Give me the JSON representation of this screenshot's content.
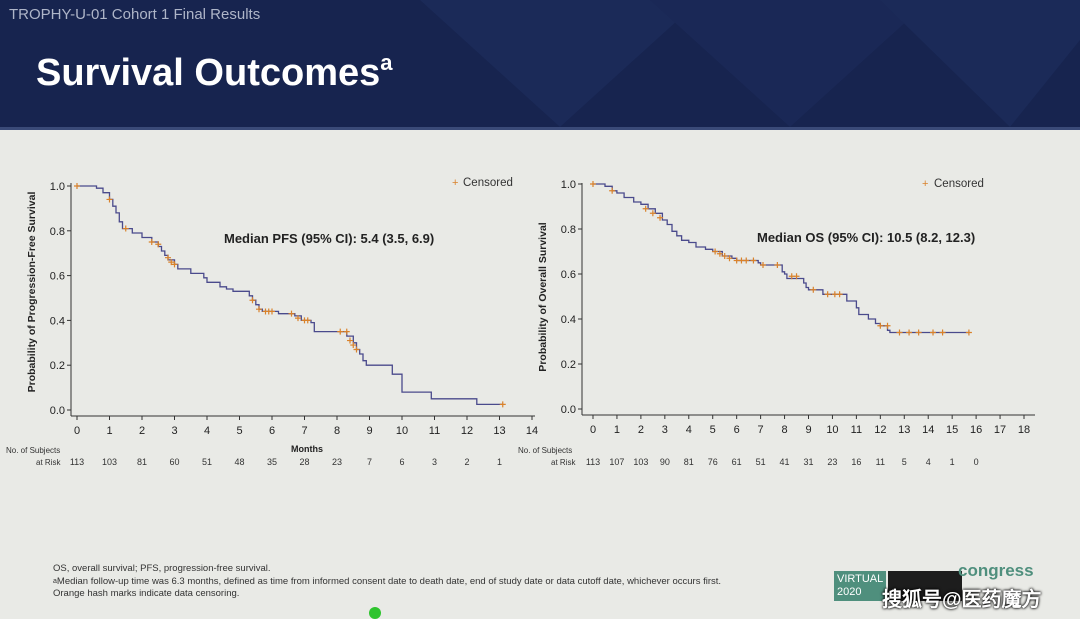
{
  "header": {
    "subtitle": "TROPHY-U-01 Cohort 1 Final Results",
    "title": "Survival Outcomes",
    "title_superscript": "a"
  },
  "chart_data": [
    {
      "type": "line",
      "title": "",
      "xlabel": "Months",
      "ylabel": "Probability of Progression-Free Survival",
      "xlim": [
        0,
        14
      ],
      "ylim": [
        0,
        1
      ],
      "x_ticks": [
        0,
        1,
        2,
        3,
        4,
        5,
        6,
        7,
        8,
        9,
        10,
        11,
        12,
        13,
        14
      ],
      "y_ticks": [
        0.0,
        0.2,
        0.4,
        0.6,
        0.8,
        1.0
      ],
      "y_tick_labels": [
        "0.0",
        "0.2",
        "0.4",
        "0.6",
        "0.8",
        "1.0"
      ],
      "annotation": "Median PFS (95% CI): 5.4 (3.5, 6.9)",
      "legend": {
        "label": "Censored",
        "position": "top-right"
      },
      "line_color": "#4a4a8c",
      "censor_color": "#d9822b",
      "series": [
        {
          "step": [
            [
              0,
              1.0
            ],
            [
              0.4,
              1.0
            ],
            [
              0.6,
              0.99
            ],
            [
              0.8,
              0.97
            ],
            [
              1.0,
              0.94
            ],
            [
              1.1,
              0.91
            ],
            [
              1.2,
              0.88
            ],
            [
              1.3,
              0.84
            ],
            [
              1.4,
              0.81
            ],
            [
              1.7,
              0.79
            ],
            [
              2.0,
              0.77
            ],
            [
              2.3,
              0.75
            ],
            [
              2.5,
              0.73
            ],
            [
              2.6,
              0.71
            ],
            [
              2.7,
              0.69
            ],
            [
              2.8,
              0.67
            ],
            [
              3.0,
              0.65
            ],
            [
              3.1,
              0.63
            ],
            [
              3.5,
              0.61
            ],
            [
              3.9,
              0.59
            ],
            [
              4.0,
              0.57
            ],
            [
              4.4,
              0.55
            ],
            [
              4.5,
              0.55
            ],
            [
              4.6,
              0.54
            ],
            [
              4.8,
              0.53
            ],
            [
              5.0,
              0.53
            ],
            [
              5.3,
              0.51
            ],
            [
              5.4,
              0.49
            ],
            [
              5.5,
              0.47
            ],
            [
              5.6,
              0.45
            ],
            [
              5.7,
              0.44
            ],
            [
              6.2,
              0.43
            ],
            [
              6.7,
              0.42
            ],
            [
              6.9,
              0.4
            ],
            [
              7.2,
              0.39
            ],
            [
              7.3,
              0.35
            ],
            [
              8.2,
              0.35
            ],
            [
              8.3,
              0.33
            ],
            [
              8.5,
              0.3
            ],
            [
              8.6,
              0.27
            ],
            [
              8.7,
              0.25
            ],
            [
              8.8,
              0.22
            ],
            [
              8.9,
              0.2
            ],
            [
              9.7,
              0.16
            ],
            [
              10.0,
              0.08
            ],
            [
              10.9,
              0.05
            ],
            [
              12.3,
              0.025
            ],
            [
              13.1,
              0.025
            ]
          ],
          "censored": [
            [
              0,
              1.0
            ],
            [
              1.0,
              0.94
            ],
            [
              1.5,
              0.81
            ],
            [
              2.3,
              0.75
            ],
            [
              2.5,
              0.74
            ],
            [
              2.8,
              0.68
            ],
            [
              2.9,
              0.66
            ],
            [
              3.0,
              0.65
            ],
            [
              5.4,
              0.49
            ],
            [
              5.6,
              0.45
            ],
            [
              5.8,
              0.44
            ],
            [
              5.9,
              0.44
            ],
            [
              6.0,
              0.44
            ],
            [
              6.6,
              0.43
            ],
            [
              6.8,
              0.41
            ],
            [
              7.0,
              0.4
            ],
            [
              7.1,
              0.4
            ],
            [
              8.1,
              0.35
            ],
            [
              8.3,
              0.35
            ],
            [
              8.4,
              0.31
            ],
            [
              8.5,
              0.29
            ],
            [
              8.6,
              0.27
            ],
            [
              13.1,
              0.025
            ]
          ]
        }
      ],
      "at_risk": {
        "label_line1": "No. of Subjects",
        "label_line2": "at Risk",
        "values": [
          "113",
          "103",
          "81",
          "60",
          "51",
          "48",
          "35",
          "28",
          "23",
          "7",
          "6",
          "3",
          "2",
          "1"
        ]
      }
    },
    {
      "type": "line",
      "title": "",
      "xlabel": "",
      "ylabel": "Probability of Overall Survival",
      "xlim": [
        0,
        18
      ],
      "ylim": [
        0,
        1
      ],
      "x_ticks": [
        0,
        1,
        2,
        3,
        4,
        5,
        6,
        7,
        8,
        9,
        10,
        11,
        12,
        13,
        14,
        15,
        16,
        17,
        18
      ],
      "y_ticks": [
        0.0,
        0.2,
        0.4,
        0.6,
        0.8,
        1.0
      ],
      "y_tick_labels": [
        "0.0",
        "0.2",
        "0.4",
        "0.6",
        "0.8",
        "1.0"
      ],
      "annotation": "Median OS (95% CI): 10.5 (8.2, 12.3)",
      "legend": {
        "label": "Censored",
        "position": "top-right"
      },
      "line_color": "#4a4a8c",
      "censor_color": "#d9822b",
      "series": [
        {
          "step": [
            [
              0,
              1.0
            ],
            [
              0.5,
              0.99
            ],
            [
              0.8,
              0.97
            ],
            [
              1.0,
              0.96
            ],
            [
              1.3,
              0.94
            ],
            [
              1.7,
              0.92
            ],
            [
              2.0,
              0.91
            ],
            [
              2.3,
              0.89
            ],
            [
              2.6,
              0.87
            ],
            [
              2.9,
              0.84
            ],
            [
              3.1,
              0.82
            ],
            [
              3.3,
              0.79
            ],
            [
              3.5,
              0.77
            ],
            [
              3.7,
              0.75
            ],
            [
              4.0,
              0.74
            ],
            [
              4.3,
              0.72
            ],
            [
              4.7,
              0.71
            ],
            [
              5.0,
              0.7
            ],
            [
              5.4,
              0.68
            ],
            [
              5.8,
              0.67
            ],
            [
              6.0,
              0.66
            ],
            [
              6.9,
              0.65
            ],
            [
              7.0,
              0.64
            ],
            [
              7.7,
              0.64
            ],
            [
              7.9,
              0.61
            ],
            [
              8.0,
              0.6
            ],
            [
              8.1,
              0.58
            ],
            [
              8.8,
              0.56
            ],
            [
              8.9,
              0.54
            ],
            [
              9.0,
              0.53
            ],
            [
              9.6,
              0.51
            ],
            [
              10.6,
              0.48
            ],
            [
              11.0,
              0.45
            ],
            [
              11.1,
              0.42
            ],
            [
              11.5,
              0.4
            ],
            [
              11.8,
              0.38
            ],
            [
              12.0,
              0.37
            ],
            [
              12.3,
              0.35
            ],
            [
              12.4,
              0.34
            ],
            [
              15.7,
              0.34
            ]
          ],
          "censored": [
            [
              0,
              1.0
            ],
            [
              0.8,
              0.97
            ],
            [
              2.2,
              0.89
            ],
            [
              2.5,
              0.87
            ],
            [
              2.8,
              0.85
            ],
            [
              5.1,
              0.7
            ],
            [
              5.3,
              0.69
            ],
            [
              5.5,
              0.68
            ],
            [
              5.7,
              0.67
            ],
            [
              6.0,
              0.66
            ],
            [
              6.2,
              0.66
            ],
            [
              6.4,
              0.66
            ],
            [
              6.7,
              0.66
            ],
            [
              7.1,
              0.64
            ],
            [
              7.7,
              0.64
            ],
            [
              8.3,
              0.59
            ],
            [
              8.5,
              0.59
            ],
            [
              9.2,
              0.53
            ],
            [
              9.8,
              0.51
            ],
            [
              10.1,
              0.51
            ],
            [
              10.3,
              0.51
            ],
            [
              12.0,
              0.37
            ],
            [
              12.3,
              0.37
            ],
            [
              12.8,
              0.34
            ],
            [
              13.2,
              0.34
            ],
            [
              13.6,
              0.34
            ],
            [
              14.2,
              0.34
            ],
            [
              14.6,
              0.34
            ],
            [
              15.7,
              0.34
            ]
          ]
        }
      ],
      "at_risk": {
        "label_line1": "No. of Subjects",
        "label_line2": "at Risk",
        "values": [
          "113",
          "107",
          "103",
          "90",
          "81",
          "76",
          "61",
          "51",
          "41",
          "31",
          "23",
          "16",
          "11",
          "5",
          "4",
          "1",
          "0"
        ]
      }
    }
  ],
  "footnotes": {
    "line1": "OS, overall survival; PFS, progression-free survival.",
    "line2_sup": "a",
    "line2": "Median follow-up time was 6.3 months, defined as time from informed consent date to death date, end of study date or data cutoff date, whichever occurs first.",
    "line3": "Orange hash marks indicate data censoring."
  },
  "logo": {
    "virtual": "VIRTUAL",
    "year": "2020",
    "congress": "congress"
  },
  "watermark": "搜狐号@医药魔方"
}
